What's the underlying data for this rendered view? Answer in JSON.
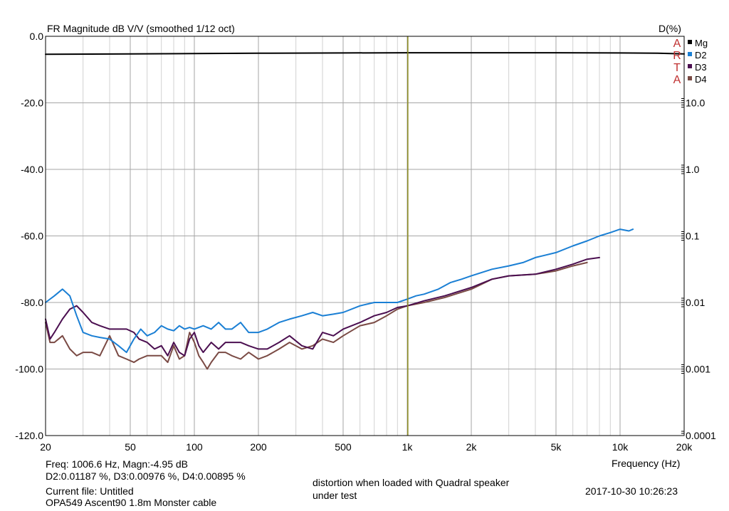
{
  "chart_data": {
    "type": "line",
    "title": "FR Magnitude dB V/V (smoothed 1/12 oct)",
    "xlabel": "Frequency (Hz)",
    "ylabel_right": "D(%)",
    "x_scale": "log",
    "xlim": [
      20,
      20000
    ],
    "ylim": [
      -120,
      0
    ],
    "right_ticks": [
      "D(%)",
      "10.0",
      "1.0",
      "0.1",
      "0.01",
      "0.001",
      "0.0001"
    ],
    "x_ticks": [
      {
        "v": 20,
        "label": "20"
      },
      {
        "v": 50,
        "label": "50"
      },
      {
        "v": 100,
        "label": "100"
      },
      {
        "v": 200,
        "label": "200"
      },
      {
        "v": 500,
        "label": "500"
      },
      {
        "v": 1000,
        "label": "1k"
      },
      {
        "v": 2000,
        "label": "2k"
      },
      {
        "v": 5000,
        "label": "5k"
      },
      {
        "v": 10000,
        "label": "10k"
      },
      {
        "v": 20000,
        "label": "20k"
      }
    ],
    "y_ticks": [
      {
        "v": 0,
        "label": "0.0"
      },
      {
        "v": -20,
        "label": "-20.0"
      },
      {
        "v": -40,
        "label": "-40.0"
      },
      {
        "v": -60,
        "label": "-60.0"
      },
      {
        "v": -80,
        "label": "-80.0"
      },
      {
        "v": -100,
        "label": "-100.0"
      },
      {
        "v": -120,
        "label": "-120.0"
      }
    ],
    "cursor": {
      "x": 1006.6,
      "color": "#8c8c1e"
    },
    "arta_letters": [
      "A",
      "R",
      "T",
      "A"
    ],
    "series": [
      {
        "name": "Mg",
        "color": "#000000",
        "x": [
          20,
          50,
          100,
          200,
          500,
          1000,
          2000,
          5000,
          10000,
          15000,
          20000
        ],
        "y": [
          -5.4,
          -5.3,
          -5.2,
          -5.1,
          -5.0,
          -4.95,
          -4.95,
          -4.95,
          -5.0,
          -5.1,
          -5.3
        ]
      },
      {
        "name": "D2",
        "color": "#1a7fd4",
        "x": [
          20,
          22,
          24,
          26,
          28,
          30,
          33,
          36,
          40,
          44,
          48,
          52,
          56,
          60,
          65,
          70,
          75,
          80,
          85,
          90,
          95,
          100,
          110,
          120,
          130,
          140,
          150,
          165,
          180,
          200,
          220,
          250,
          280,
          320,
          360,
          400,
          450,
          500,
          600,
          700,
          800,
          900,
          1000,
          1100,
          1200,
          1400,
          1600,
          1800,
          2000,
          2500,
          3000,
          3500,
          4000,
          5000,
          6000,
          7000,
          8000,
          9000,
          10000,
          11000,
          11500
        ],
        "y": [
          -80,
          -78,
          -76,
          -78,
          -84,
          -89,
          -90,
          -90.5,
          -91,
          -93,
          -95,
          -91,
          -88,
          -90,
          -89,
          -87,
          -88,
          -88.5,
          -87,
          -88,
          -87.5,
          -88,
          -87,
          -88,
          -86,
          -88,
          -88,
          -86,
          -89,
          -89,
          -88,
          -86,
          -85,
          -84,
          -83,
          -84,
          -83.5,
          -83,
          -81,
          -80,
          -80,
          -80,
          -79,
          -78,
          -77.5,
          -76,
          -74,
          -73,
          -72,
          -70,
          -69,
          -68,
          -66.5,
          -65,
          -63,
          -61.5,
          -60,
          -59,
          -58,
          -58.5,
          -58
        ]
      },
      {
        "name": "D3",
        "color": "#4b0f50",
        "x": [
          20,
          21,
          22,
          24,
          26,
          28,
          30,
          33,
          36,
          40,
          44,
          48,
          52,
          55,
          60,
          65,
          70,
          75,
          80,
          85,
          90,
          95,
          100,
          105,
          110,
          120,
          130,
          140,
          150,
          165,
          180,
          200,
          220,
          250,
          280,
          320,
          360,
          400,
          450,
          500,
          600,
          700,
          800,
          900,
          1000,
          1200,
          1500,
          2000,
          2500,
          3000,
          4000,
          5000,
          6000,
          7000,
          8000
        ],
        "y": [
          -85,
          -91,
          -89,
          -85,
          -82,
          -81,
          -83,
          -86,
          -87,
          -88,
          -88,
          -88,
          -89,
          -91,
          -92,
          -94,
          -93,
          -96,
          -92,
          -95,
          -96,
          -91,
          -89,
          -93,
          -95,
          -92,
          -94,
          -92,
          -92,
          -92,
          -93,
          -94,
          -94,
          -92,
          -90,
          -93,
          -94,
          -89,
          -90,
          -88,
          -86,
          -84,
          -83,
          -81.5,
          -81,
          -79.5,
          -78,
          -75.5,
          -73,
          -72,
          -71.5,
          -70,
          -68.5,
          -67,
          -66.5
        ]
      },
      {
        "name": "D4",
        "color": "#7a4a44",
        "x": [
          20,
          21,
          22,
          24,
          26,
          28,
          30,
          33,
          36,
          40,
          44,
          48,
          52,
          55,
          60,
          65,
          70,
          75,
          80,
          85,
          90,
          95,
          100,
          105,
          110,
          115,
          120,
          130,
          140,
          150,
          165,
          180,
          200,
          220,
          250,
          280,
          320,
          360,
          400,
          450,
          500,
          600,
          700,
          800,
          900,
          1000,
          1200,
          1500,
          2000,
          2500,
          3000,
          4000,
          5000,
          6000,
          7000
        ],
        "y": [
          -86,
          -92,
          -92,
          -90,
          -94,
          -96,
          -95,
          -95,
          -96,
          -90,
          -96,
          -97,
          -98,
          -97,
          -96,
          -96,
          -96,
          -98,
          -93,
          -97,
          -96,
          -89,
          -92,
          -96,
          -98,
          -100,
          -98,
          -95,
          -95,
          -96,
          -97,
          -95,
          -97,
          -96,
          -94,
          -92,
          -94,
          -93,
          -91,
          -92,
          -90,
          -87,
          -86,
          -84,
          -82,
          -81,
          -80,
          -78.5,
          -76,
          -73,
          -72,
          -71.5,
          -70.5,
          -69,
          -68
        ]
      }
    ]
  },
  "info": {
    "cursor_line1": "Freq: 1006.6 Hz, Magn:-4.95 dB",
    "cursor_line2": "D2:0.01187 %, D3:0.00976 %, D4:0.00895 %",
    "current_file": "Current file: Untitled",
    "description": "OPA549 Ascent90 1.8m Monster cable",
    "note_line1": "distortion when loaded with Quadral speaker",
    "note_line2": "under test",
    "timestamp": "2017-10-30  10:26:23"
  }
}
